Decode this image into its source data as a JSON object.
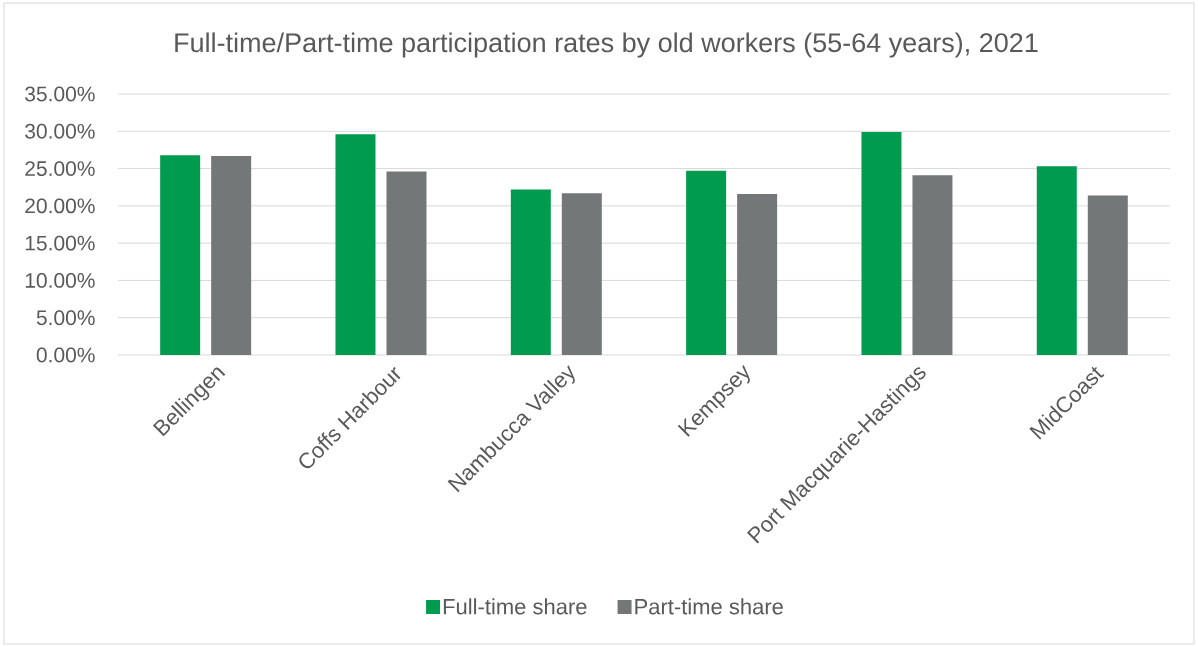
{
  "chart_data": {
    "type": "bar",
    "title": "Full-time/Part-time participation rates by old workers (55-64 years), 2021",
    "categories": [
      "Bellingen",
      "Coffs Harbour",
      "Nambucca Valley",
      "Kempsey",
      "Port Macquarie-Hastings",
      "MidCoast"
    ],
    "series": [
      {
        "name": "Full-time share",
        "color": "#009b4e",
        "values": [
          26.8,
          29.6,
          22.2,
          24.7,
          29.9,
          25.3
        ]
      },
      {
        "name": "Part-time share",
        "color": "#737777",
        "values": [
          26.7,
          24.6,
          21.7,
          21.6,
          24.1,
          21.4
        ]
      }
    ],
    "ylim": [
      0,
      35
    ],
    "yticks": [
      {
        "value": 0,
        "label": "0.00%"
      },
      {
        "value": 5,
        "label": "5.00%"
      },
      {
        "value": 10,
        "label": "10.00%"
      },
      {
        "value": 15,
        "label": "15.00%"
      },
      {
        "value": 20,
        "label": "20.00%"
      },
      {
        "value": 25,
        "label": "25.00%"
      },
      {
        "value": 30,
        "label": "30.00%"
      },
      {
        "value": 35,
        "label": "35.00%"
      }
    ],
    "grid": "y",
    "legend": "bottom"
  }
}
